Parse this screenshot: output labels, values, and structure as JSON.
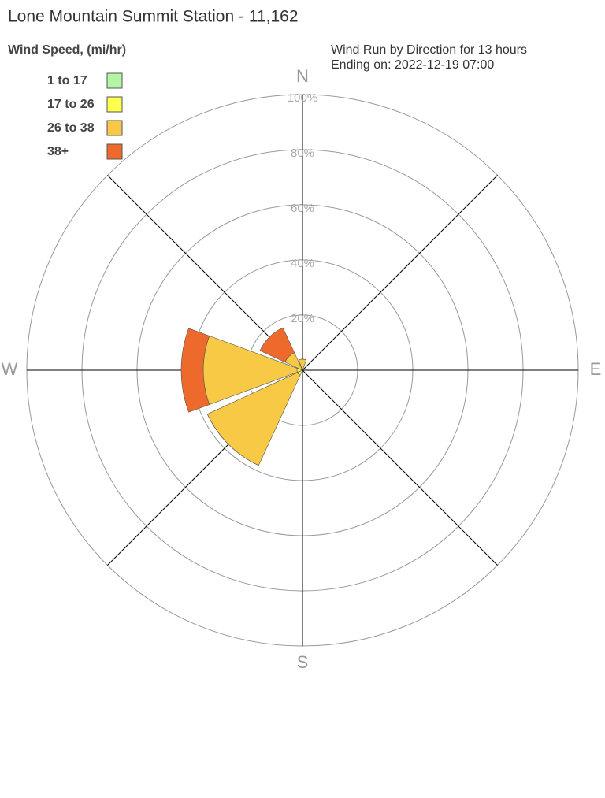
{
  "chart_data": {
    "type": "windrose",
    "title": "Lone Mountain Summit Station - 11,162",
    "subtitle": [
      "Wind Run by Direction for 13 hours",
      "Ending on: 2022-12-19 07:00"
    ],
    "legend_title": "Wind Speed, (mi/hr)",
    "categories": [
      "N",
      null,
      "E",
      null,
      "S",
      null,
      "W",
      null
    ],
    "series": [
      {
        "name": "1 to 17",
        "color": "#b3f5a3",
        "values": [
          0,
          0,
          0,
          0,
          0,
          0,
          0,
          0
        ]
      },
      {
        "name": "17 to 26",
        "color": "#ffff4d",
        "values": [
          0,
          0,
          0,
          0,
          0,
          2,
          2,
          0
        ]
      },
      {
        "name": "26 to 38",
        "color": "#f7c944",
        "values": [
          4,
          0,
          0,
          0,
          0,
          36,
          34,
          7
        ]
      },
      {
        "name": "38+",
        "color": "#ee6a2c",
        "values": [
          0,
          0,
          0,
          0,
          0,
          0,
          8,
          10
        ]
      }
    ],
    "ylim": [
      0,
      100
    ],
    "yticks": [
      {
        "value": 20,
        "label": "20%"
      },
      {
        "value": 40,
        "label": "40%"
      },
      {
        "value": 60,
        "label": "60%"
      },
      {
        "value": 80,
        "label": "80%"
      },
      {
        "value": 100,
        "label": "100%"
      }
    ],
    "legend_position": "upper left"
  }
}
